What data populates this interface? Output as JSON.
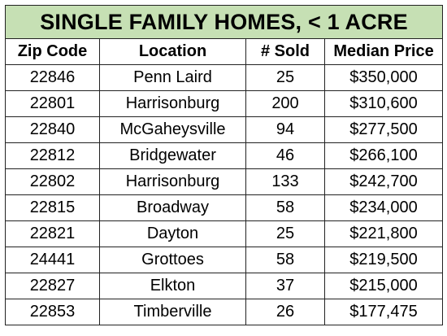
{
  "table": {
    "title": "SINGLE FAMILY HOMES, < 1 ACRE",
    "headers": [
      "Zip Code",
      "Location",
      "# Sold",
      "Median Price"
    ],
    "rows": [
      {
        "zip": "22846",
        "location": "Penn Laird",
        "sold": "25",
        "price": "$350,000"
      },
      {
        "zip": "22801",
        "location": "Harrisonburg",
        "sold": "200",
        "price": "$310,600"
      },
      {
        "zip": "22840",
        "location": "McGaheysville",
        "sold": "94",
        "price": "$277,500"
      },
      {
        "zip": "22812",
        "location": "Bridgewater",
        "sold": "46",
        "price": "$266,100"
      },
      {
        "zip": "22802",
        "location": "Harrisonburg",
        "sold": "133",
        "price": "$242,700"
      },
      {
        "zip": "22815",
        "location": "Broadway",
        "sold": "58",
        "price": "$234,000"
      },
      {
        "zip": "22821",
        "location": "Dayton",
        "sold": "25",
        "price": "$221,800"
      },
      {
        "zip": "24441",
        "location": "Grottoes",
        "sold": "58",
        "price": "$219,500"
      },
      {
        "zip": "22827",
        "location": "Elkton",
        "sold": "37",
        "price": "$215,000"
      },
      {
        "zip": "22853",
        "location": "Timberville",
        "sold": "26",
        "price": "$177,475"
      }
    ]
  },
  "colors": {
    "title_background": "#c6e0b4",
    "border": "#222222",
    "text": "#000000"
  }
}
